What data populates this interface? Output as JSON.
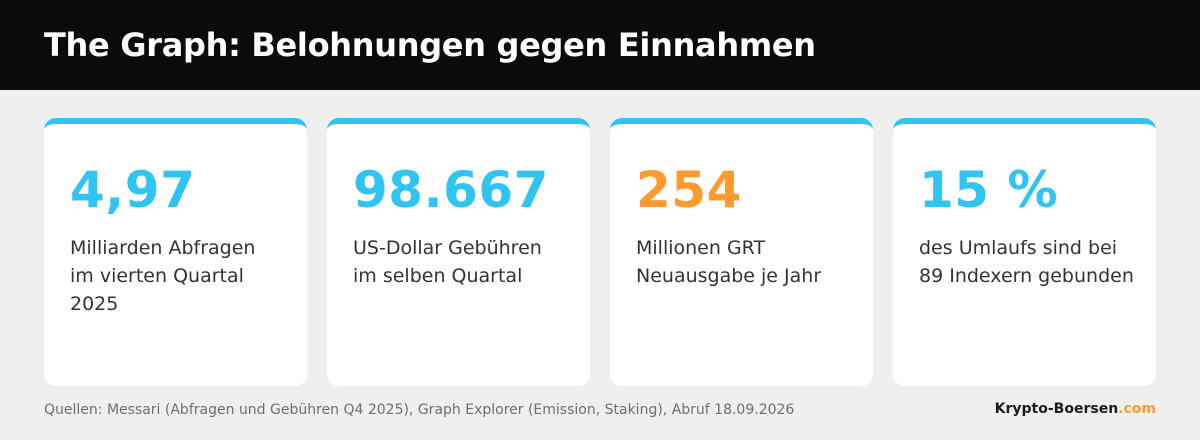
{
  "header": {
    "title": "The Graph: Belohnungen gegen Einnahmen"
  },
  "cards": [
    {
      "value": "4,97",
      "value_color": "#2fc4f2",
      "desc_line1": "Milliarden Abfragen",
      "desc_line2": "im vierten Quartal",
      "desc_line3": "2025"
    },
    {
      "value": "98.667",
      "value_color": "#2fc4f2",
      "desc_line1": "US-Dollar Gebühren",
      "desc_line2": "im selben Quartal"
    },
    {
      "value": "254",
      "value_color": "#ff9a2e",
      "desc_line1": "Millionen GRT",
      "desc_line2": "Neuausgabe je Jahr"
    },
    {
      "value": "15 %",
      "value_color": "#2fc4f2",
      "desc_line1": "des Umlaufs sind bei",
      "desc_line2": "89 Indexern gebunden"
    }
  ],
  "colors": {
    "accent_blue": "#2fc4f2",
    "accent_orange": "#ff9a2e",
    "header_bg": "#0b0b0b",
    "page_bg": "#efefef"
  },
  "footer": {
    "sources": "Quellen: Messari (Abfragen und Gebühren Q4 2025), Graph Explorer (Emission, Staking), Abruf 18.09.2026",
    "brand_main": "Krypto-Boersen",
    "brand_tld": ".com"
  }
}
